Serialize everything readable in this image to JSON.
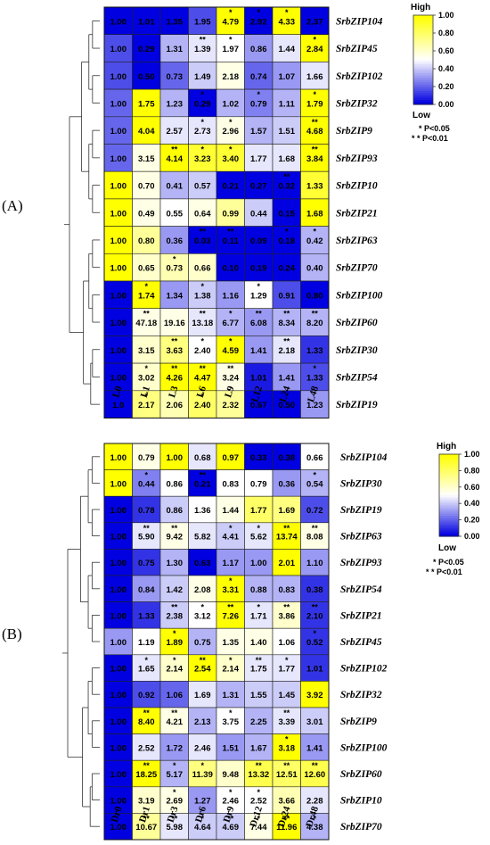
{
  "colors": {
    "low": "#0000e0",
    "mid": "#ffffff",
    "high": "#ffff00"
  },
  "legend": {
    "high_label": "High",
    "low_label": "Low",
    "ticks": [
      "1.00",
      "0.80",
      "0.60",
      "0.40",
      "0.20",
      "0.00"
    ],
    "sig1": "* P<0.05",
    "sig2": "* * P<0.01"
  },
  "chart_data": [
    {
      "type": "heatmap",
      "panel": "(A)",
      "columns": [
        "L0",
        "L1",
        "L3",
        "L6",
        "L9",
        "L12",
        "L24",
        "L48"
      ],
      "rows": [
        "SrbZIP104",
        "SrbZIP45",
        "SrbZIP102",
        "SrbZIP32",
        "SrbZIP9",
        "SrbZIP93",
        "SrbZIP10",
        "SrbZIP21",
        "SrbZIP63",
        "SrbZIP70",
        "SrbZIP100",
        "SrbZIP60",
        "SrbZIP30",
        "SrbZIP54",
        "SrbZIP19"
      ],
      "values": [
        [
          "1.00",
          "1.01",
          "1.35",
          "1.95",
          "4.79",
          "2.92",
          "4.33",
          "2.37"
        ],
        [
          "1.00",
          "0.29",
          "1.31",
          "1.39",
          "1.97",
          "0.86",
          "1.44",
          "2.84"
        ],
        [
          "1.00",
          "0.50",
          "0.73",
          "1.49",
          "2.18",
          "0.74",
          "1.07",
          "1.66"
        ],
        [
          "1.00",
          "1.75",
          "1.23",
          "0.29",
          "1.02",
          "0.79",
          "1.11",
          "1.79"
        ],
        [
          "1.00",
          "4.04",
          "2.57",
          "2.73",
          "2.96",
          "1.57",
          "1.51",
          "4.68"
        ],
        [
          "1.00",
          "3.15",
          "4.14",
          "3.23",
          "3.40",
          "1.77",
          "1.68",
          "3.84"
        ],
        [
          "1.00",
          "0.70",
          "0.41",
          "0.57",
          "0.21",
          "0.27",
          "0.32",
          "1.33"
        ],
        [
          "1.00",
          "0.49",
          "0.55",
          "0.64",
          "0.99",
          "0.44",
          "0.15",
          "1.68"
        ],
        [
          "1.00",
          "0.80",
          "0.36",
          "0.03",
          "0.11",
          "0.09",
          "0.18",
          "0.42"
        ],
        [
          "1.00",
          "0.65",
          "0.73",
          "0.66",
          "0.10",
          "0.19",
          "0.24",
          "0.40"
        ],
        [
          "1.00",
          "1.74",
          "1.34",
          "1.38",
          "1.16",
          "1.29",
          "0.91",
          "0.80"
        ],
        [
          "1.00",
          "47.18",
          "19.16",
          "13.18",
          "6.77",
          "6.08",
          "8.34",
          "8.20"
        ],
        [
          "1.00",
          "3.15",
          "3.63",
          "2.40",
          "4.59",
          "1.41",
          "2.18",
          "1.33"
        ],
        [
          "1.00",
          "3.02",
          "4.26",
          "4.47",
          "3.24",
          "1.01",
          "1.41",
          "1.33"
        ],
        [
          "1.0",
          "2.17",
          "2.06",
          "2.40",
          "2.32",
          "0.67",
          "0.50",
          "1.23"
        ]
      ],
      "intensity": [
        [
          0.0,
          0.0,
          0.0,
          0.15,
          1.0,
          0.0,
          1.0,
          0.0
        ],
        [
          0.15,
          0.0,
          0.35,
          0.45,
          0.5,
          0.3,
          0.45,
          1.0
        ],
        [
          0.15,
          0.0,
          0.2,
          0.4,
          0.55,
          0.2,
          0.3,
          0.45
        ],
        [
          0.2,
          1.0,
          0.35,
          0.0,
          0.35,
          0.25,
          0.35,
          1.0
        ],
        [
          0.2,
          1.0,
          0.45,
          0.45,
          0.55,
          0.35,
          0.4,
          1.0
        ],
        [
          0.2,
          0.55,
          1.0,
          0.9,
          0.9,
          0.45,
          0.45,
          1.0
        ],
        [
          1.0,
          0.55,
          0.35,
          0.4,
          0.0,
          0.0,
          0.0,
          0.9
        ],
        [
          1.0,
          0.55,
          0.5,
          0.55,
          0.7,
          0.4,
          0.0,
          1.0
        ],
        [
          1.0,
          0.7,
          0.3,
          0.0,
          0.0,
          0.0,
          0.0,
          0.35
        ],
        [
          1.0,
          0.6,
          0.65,
          0.6,
          0.0,
          0.0,
          0.0,
          0.35
        ],
        [
          0.0,
          1.0,
          0.3,
          0.4,
          0.3,
          0.5,
          0.15,
          0.0
        ],
        [
          0.0,
          0.55,
          0.55,
          0.45,
          0.35,
          0.3,
          0.35,
          0.35
        ],
        [
          0.0,
          0.6,
          0.75,
          0.5,
          1.0,
          0.3,
          0.45,
          0.1
        ],
        [
          0.0,
          0.6,
          1.0,
          1.0,
          0.55,
          0.05,
          0.3,
          0.15
        ],
        [
          0.0,
          0.75,
          0.65,
          0.8,
          0.7,
          0.0,
          0.0,
          0.3
        ]
      ],
      "stars": [
        [
          "",
          "",
          "",
          "",
          "*",
          "*",
          "*",
          ""
        ],
        [
          "",
          "",
          "",
          "**",
          "*",
          "",
          "",
          "*"
        ],
        [
          "",
          "",
          "",
          "",
          "",
          "",
          "",
          ""
        ],
        [
          "",
          "",
          "",
          "*",
          "",
          "*",
          "",
          "*"
        ],
        [
          "",
          "",
          "",
          "*",
          "*",
          "",
          "",
          "**"
        ],
        [
          "",
          "",
          "**",
          "*",
          "*",
          "",
          "",
          "**"
        ],
        [
          "",
          "",
          "",
          "",
          "",
          "",
          "**",
          ""
        ],
        [
          "",
          "",
          "",
          "",
          "",
          "",
          "",
          ""
        ],
        [
          "",
          "",
          "",
          "**",
          "**",
          "",
          "*",
          "*"
        ],
        [
          "",
          "",
          "*",
          "",
          "",
          "",
          "",
          ""
        ],
        [
          "",
          "*",
          "",
          "*",
          "",
          "*",
          "",
          ""
        ],
        [
          "",
          "**",
          "",
          "**",
          "*",
          "**",
          "**",
          "**"
        ],
        [
          "",
          "",
          "**",
          "*",
          "*",
          "",
          "**",
          ""
        ],
        [
          "",
          "*",
          "**",
          "**",
          "**",
          "",
          "",
          "*"
        ],
        [
          "",
          "*",
          "",
          "*",
          "",
          "",
          "",
          ""
        ]
      ]
    },
    {
      "type": "heatmap",
      "panel": "(B)",
      "columns": [
        "Dr0",
        "Dr1",
        "Dr3",
        "Dr6",
        "Dr9",
        "Dr12",
        "Dr24",
        "Dr48"
      ],
      "rows": [
        "SrbZIP104",
        "SrbZIP30",
        "SrbZIP19",
        "SrbZIP63",
        "SrbZIP93",
        "SrbZIP54",
        "SrbZIP21",
        "SrbZIP45",
        "SrbZIP102",
        "SrbZIP32",
        "SrbZIP9",
        "SrbZIP100",
        "SrbZIP60",
        "SrbZIP10",
        "SrbZIP70"
      ],
      "values": [
        [
          "1.00",
          "0.79",
          "1.00",
          "0.68",
          "0.97",
          "0.33",
          "0.38",
          "0.66"
        ],
        [
          "1.00",
          "0.44",
          "0.86",
          "0.21",
          "0.83",
          "0.79",
          "0.36",
          "0.54"
        ],
        [
          "1.00",
          "0.78",
          "0.86",
          "1.36",
          "1.44",
          "1.77",
          "1.69",
          "0.72"
        ],
        [
          "1.00",
          "5.90",
          "9.42",
          "5.82",
          "4.41",
          "5.62",
          "13.74",
          "8.08"
        ],
        [
          "1.00",
          "0.75",
          "1.30",
          "0.63",
          "1.17",
          "1.00",
          "2.01",
          "1.10"
        ],
        [
          "1.00",
          "0.84",
          "1.42",
          "2.08",
          "3.31",
          "0.88",
          "0.83",
          "0.38"
        ],
        [
          "1.00",
          "1.33",
          "2.38",
          "3.12",
          "7.26",
          "1.71",
          "3.86",
          "2.10"
        ],
        [
          "1.00",
          "1.19",
          "1.89",
          "0.75",
          "1.35",
          "1.40",
          "1.06",
          "0.52"
        ],
        [
          "1.00",
          "1.65",
          "2.14",
          "2.54",
          "2.14",
          "1.75",
          "1.77",
          "1.01"
        ],
        [
          "1.00",
          "0.92",
          "1.06",
          "1.69",
          "1.31",
          "1.55",
          "1.45",
          "3.92"
        ],
        [
          "1.00",
          "8.40",
          "4.21",
          "2.13",
          "3.75",
          "2.25",
          "3.39",
          "3.01"
        ],
        [
          "1.00",
          "2.52",
          "1.72",
          "2.46",
          "1.51",
          "1.67",
          "3.18",
          "1.41"
        ],
        [
          "1.00",
          "18.25",
          "5.17",
          "11.39",
          "9.48",
          "13.32",
          "12.51",
          "12.60"
        ],
        [
          "1.00",
          "3.19",
          "2.69",
          "1.27",
          "2.46",
          "2.52",
          "3.66",
          "2.28"
        ],
        [
          "1.00",
          "10.67",
          "5.98",
          "4.64",
          "4.69",
          "7.44",
          "11.96",
          "4.38"
        ]
      ],
      "intensity": [
        [
          1.0,
          0.55,
          1.0,
          0.45,
          1.0,
          0.0,
          0.0,
          0.5
        ],
        [
          1.0,
          0.25,
          0.5,
          0.0,
          0.5,
          0.5,
          0.3,
          0.35
        ],
        [
          0.0,
          0.1,
          0.4,
          0.5,
          0.55,
          0.8,
          0.75,
          0.15
        ],
        [
          0.0,
          0.45,
          0.55,
          0.45,
          0.4,
          0.45,
          1.0,
          0.55
        ],
        [
          0.0,
          0.1,
          0.35,
          0.0,
          0.3,
          0.3,
          1.0,
          0.3
        ],
        [
          0.0,
          0.3,
          0.4,
          0.55,
          1.0,
          0.35,
          0.35,
          0.1
        ],
        [
          0.0,
          0.1,
          0.4,
          0.5,
          1.0,
          0.45,
          0.6,
          0.1
        ],
        [
          0.3,
          0.5,
          1.0,
          0.35,
          0.55,
          0.55,
          0.5,
          0.1
        ],
        [
          0.0,
          0.45,
          0.6,
          1.0,
          0.6,
          0.45,
          0.45,
          0.1
        ],
        [
          0.0,
          0.15,
          0.2,
          0.45,
          0.35,
          0.4,
          0.4,
          1.0
        ],
        [
          0.0,
          1.0,
          0.55,
          0.35,
          0.5,
          0.35,
          0.45,
          0.4
        ],
        [
          0.0,
          0.45,
          0.3,
          0.45,
          0.3,
          0.35,
          1.0,
          0.3
        ],
        [
          0.0,
          1.0,
          0.35,
          0.75,
          0.6,
          0.85,
          0.8,
          0.85
        ],
        [
          0.0,
          0.6,
          0.55,
          0.3,
          0.5,
          0.5,
          0.65,
          0.45
        ],
        [
          0.0,
          0.7,
          0.45,
          0.4,
          0.4,
          0.55,
          1.0,
          0.35
        ]
      ],
      "stars": [
        [
          "",
          "",
          "",
          "",
          "",
          "",
          "",
          ""
        ],
        [
          "",
          "*",
          "",
          "**",
          "",
          "",
          "",
          "*"
        ],
        [
          "",
          "",
          "",
          "",
          "",
          "",
          "",
          ""
        ],
        [
          "",
          "**",
          "**",
          "",
          "*",
          "*",
          "**",
          "**"
        ],
        [
          "",
          "",
          "",
          "",
          "",
          "",
          "",
          ""
        ],
        [
          "",
          "",
          "",
          "",
          "*",
          "",
          "",
          ""
        ],
        [
          "",
          "",
          "**",
          "*",
          "**",
          "*",
          "**",
          "**"
        ],
        [
          "",
          "",
          "*",
          "",
          "",
          "",
          "",
          "*"
        ],
        [
          "",
          "*",
          "*",
          "**",
          "*",
          "**",
          "*",
          ""
        ],
        [
          "",
          "",
          "",
          "",
          "",
          "",
          "",
          ""
        ],
        [
          "",
          "**",
          "**",
          "",
          "*",
          "",
          "**",
          ""
        ],
        [
          "",
          "",
          "",
          "",
          "",
          "",
          "*",
          ""
        ],
        [
          "",
          "**",
          "*",
          "*",
          "",
          "**",
          "**",
          "**"
        ],
        [
          "",
          "",
          "*",
          "",
          "*",
          "*",
          "",
          ""
        ],
        [
          "",
          "**",
          "**",
          "*",
          "**",
          "*",
          "**",
          "*"
        ]
      ]
    }
  ]
}
